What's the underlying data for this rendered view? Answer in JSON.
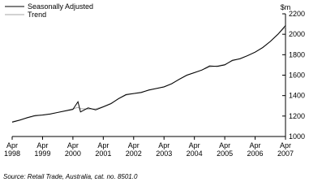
{
  "chart_data": {
    "type": "line",
    "y_unit": "$m",
    "source": "Source: Retail Trade, Australia, cat. no. 8501.0",
    "x": [
      "1998-04",
      "1998-07",
      "1998-10",
      "1999-01",
      "1999-04",
      "1999-07",
      "1999-10",
      "2000-01",
      "2000-04",
      "2000-06",
      "2000-07",
      "2000-10",
      "2001-01",
      "2001-04",
      "2001-07",
      "2001-10",
      "2002-01",
      "2002-04",
      "2002-07",
      "2002-10",
      "2003-01",
      "2003-04",
      "2003-07",
      "2003-10",
      "2004-01",
      "2004-04",
      "2004-07",
      "2004-10",
      "2005-01",
      "2005-04",
      "2005-07",
      "2005-10",
      "2006-01",
      "2006-04",
      "2006-07",
      "2006-10",
      "2007-01",
      "2007-04"
    ],
    "series": [
      {
        "name": "Seasonally Adjusted",
        "color": "#000000",
        "values": [
          1140,
          1160,
          1185,
          1205,
          1210,
          1220,
          1235,
          1250,
          1265,
          1340,
          1240,
          1280,
          1260,
          1290,
          1320,
          1370,
          1410,
          1420,
          1430,
          1455,
          1470,
          1485,
          1515,
          1560,
          1600,
          1625,
          1650,
          1690,
          1685,
          1700,
          1745,
          1760,
          1790,
          1825,
          1870,
          1930,
          2000,
          2085
        ]
      },
      {
        "name": "Trend",
        "color": "#a6a6a6",
        "values": [
          1145,
          1162,
          1182,
          1200,
          1212,
          1222,
          1236,
          1252,
          1270,
          1285,
          1272,
          1268,
          1270,
          1292,
          1325,
          1368,
          1405,
          1420,
          1434,
          1452,
          1470,
          1488,
          1518,
          1558,
          1598,
          1624,
          1652,
          1680,
          1690,
          1705,
          1740,
          1762,
          1792,
          1826,
          1872,
          1930,
          1998,
          2075
        ]
      }
    ],
    "xlim": [
      "1998-04",
      "2007-04"
    ],
    "xticks": [
      {
        "value": "1998-04",
        "label": "Apr 1998"
      },
      {
        "value": "1999-04",
        "label": "Apr 1999"
      },
      {
        "value": "2000-04",
        "label": "Apr 2000"
      },
      {
        "value": "2001-04",
        "label": "Apr 2001"
      },
      {
        "value": "2002-04",
        "label": "Apr 2002"
      },
      {
        "value": "2003-04",
        "label": "Apr 2003"
      },
      {
        "value": "2004-04",
        "label": "Apr 2004"
      },
      {
        "value": "2005-04",
        "label": "Apr 2005"
      },
      {
        "value": "2006-04",
        "label": "Apr 2006"
      },
      {
        "value": "2007-04",
        "label": "Apr 2007"
      }
    ],
    "ylim": [
      1000,
      2200
    ],
    "yticks": [
      1000,
      1200,
      1400,
      1600,
      1800,
      2000,
      2200
    ]
  }
}
